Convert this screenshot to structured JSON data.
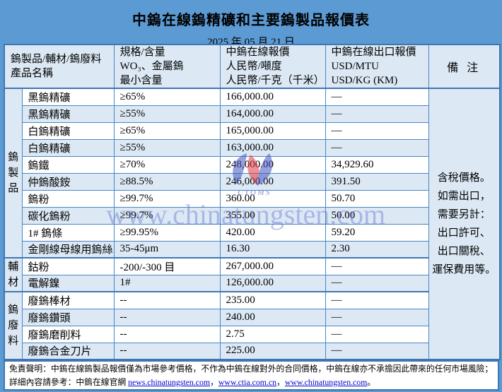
{
  "page": {
    "title": "中鎢在線鎢精礦和主要鎢製品報價表",
    "date": "2025 年 05 月 21 日"
  },
  "table": {
    "header": {
      "product_lines": [
        "鎢製品/輔材/鎢廢料",
        "產品名稱"
      ],
      "spec_lines": [
        "規格/含量",
        "WO₃、金屬鎢",
        "最小含量"
      ],
      "cny_lines": [
        "中鎢在線報價",
        "人民幣/噸度",
        "人民幣/千克（千米）"
      ],
      "usd_lines": [
        "中鎢在線出口報價",
        "USD/MTU",
        "USD/KG (KM)"
      ],
      "remark": "備 注"
    },
    "groups": [
      {
        "label": "鎢製品",
        "row_count": 10
      },
      {
        "label": "輔材",
        "row_count": 2
      },
      {
        "label": "鎢廢料",
        "row_count": 4
      }
    ],
    "rows": [
      {
        "name": "黑鎢精礦",
        "spec": "≥65%",
        "cny": "166,000.00",
        "usd": "—"
      },
      {
        "name": "黑鎢精礦",
        "spec": "≥55%",
        "cny": "164,000.00",
        "usd": "—"
      },
      {
        "name": "白鎢精礦",
        "spec": "≥65%",
        "cny": "165,000.00",
        "usd": "—"
      },
      {
        "name": "白鎢精礦",
        "spec": "≥55%",
        "cny": "163,000.00",
        "usd": "—"
      },
      {
        "name": "鎢鐵",
        "spec": "≥70%",
        "cny": "248,000.00",
        "usd": "34,929.60"
      },
      {
        "name": "仲鎢酸銨",
        "spec": "≥88.5%",
        "cny": "246,000.00",
        "usd": "391.50"
      },
      {
        "name": "鎢粉",
        "spec": "≥99.7%",
        "cny": "360.00",
        "usd": "50.70"
      },
      {
        "name": "碳化鎢粉",
        "spec": "≥99.7%",
        "cny": "355.00",
        "usd": "50.00"
      },
      {
        "name": "1# 鎢條",
        "spec": "≥99.95%",
        "cny": "420.00",
        "usd": "59.20"
      },
      {
        "name": "金剛線母線用鎢絲",
        "spec": "35-45μm",
        "cny": "16.30",
        "usd": "2.30"
      },
      {
        "name": "鈷粉",
        "spec": "-200/-300 目",
        "cny": "267,000.00",
        "usd": "—"
      },
      {
        "name": "電解鎳",
        "spec": "1#",
        "cny": "126,000.00",
        "usd": "—"
      },
      {
        "name": "廢鎢棒材",
        "spec": "--",
        "cny": "235.00",
        "usd": "—"
      },
      {
        "name": "廢鎢鑽頭",
        "spec": "--",
        "cny": "240.00",
        "usd": "—"
      },
      {
        "name": "廢鎢磨削料",
        "spec": "--",
        "cny": "2.75",
        "usd": "—"
      },
      {
        "name": "廢鎢合金刀片",
        "spec": "--",
        "cny": "225.00",
        "usd": "—"
      }
    ],
    "remark_lines": [
      "含稅價格。",
      "如需出口，",
      "需要另計：",
      "出口許可、",
      "出口關稅、",
      "運保費用等。"
    ]
  },
  "watermark": {
    "logo_text": "CTOMS",
    "text": "www.chinatungsten.com"
  },
  "footer": {
    "line1": "免責聲明：中鎢在線鎢製品報價僅為市場參考價格，不作為中鎢在線對外的合同價格，中鎢在線亦不承擔因此帶來的任何市場風險；",
    "line2_prefix": "詳細內容請參考：中鎢在線官網 ",
    "links": [
      "news.chinatungsten.com",
      "www.ctia.com.cn",
      "www.chinatungsten.com"
    ],
    "link_separator": "，",
    "line2_suffix": "。"
  },
  "colors": {
    "page_bg": "#5b9ad3",
    "header_bg": "#dce9f5",
    "stripe_bg": "#dce9f5",
    "row_bg": "#ffffff",
    "border": "#4a86c4",
    "border_strong": "#3f76b2",
    "link": "#0000cc",
    "watermark_blue": "#4456c0",
    "watermark_red": "#e23a44"
  }
}
